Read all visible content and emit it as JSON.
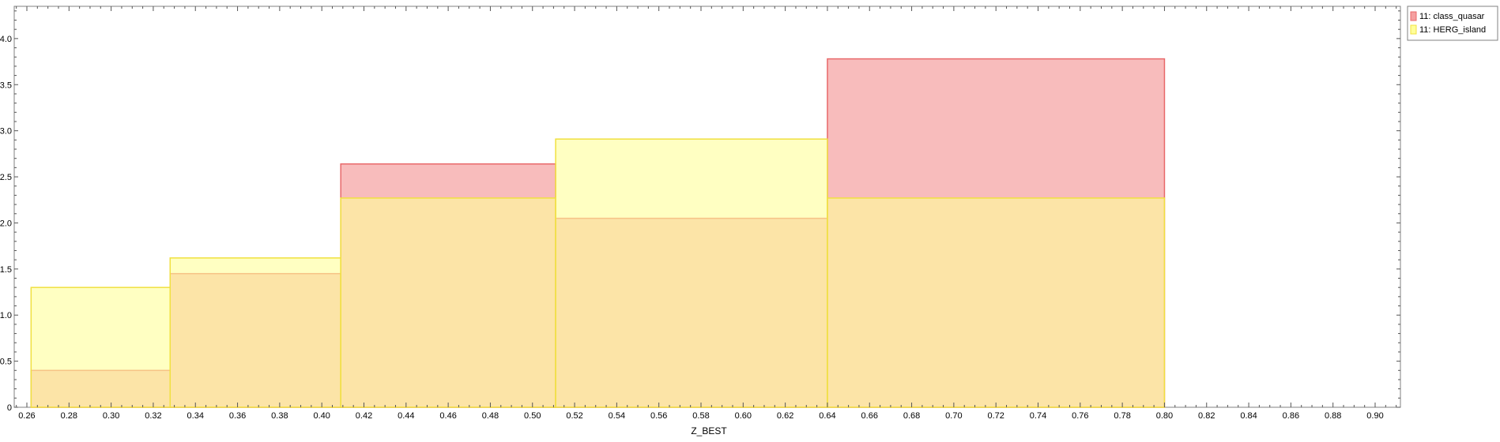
{
  "chart_data": {
    "type": "histogram",
    "xlabel": "Z_BEST",
    "ylabel": "",
    "xlim": [
      0.254,
      0.912
    ],
    "ylim": [
      0,
      4.35
    ],
    "x_ticks": [
      0.26,
      0.28,
      0.3,
      0.32,
      0.34,
      0.36,
      0.38,
      0.4,
      0.42,
      0.44,
      0.46,
      0.48,
      0.5,
      0.52,
      0.54,
      0.56,
      0.58,
      0.6,
      0.62,
      0.64,
      0.66,
      0.68,
      0.7,
      0.72,
      0.74,
      0.76,
      0.78,
      0.8,
      0.82,
      0.84,
      0.86,
      0.88,
      0.9
    ],
    "x_tick_labels": [
      "0.26",
      "0.28",
      "0.30",
      "0.32",
      "0.34",
      "0.36",
      "0.38",
      "0.40",
      "0.42",
      "0.44",
      "0.46",
      "0.48",
      "0.50",
      "0.52",
      "0.54",
      "0.56",
      "0.58",
      "0.60",
      "0.62",
      "0.64",
      "0.66",
      "0.68",
      "0.70",
      "0.72",
      "0.74",
      "0.76",
      "0.78",
      "0.80",
      "0.82",
      "0.84",
      "0.86",
      "0.88",
      "0.90"
    ],
    "y_ticks": [
      0,
      0.5,
      1.0,
      1.5,
      2.0,
      2.5,
      3.0,
      3.5,
      4.0
    ],
    "y_tick_labels": [
      "0",
      "0.5",
      "1.0",
      "1.5",
      "2.0",
      "2.5",
      "3.0",
      "3.5",
      "4.0"
    ],
    "bin_edges": [
      0.262,
      0.328,
      0.409,
      0.511,
      0.64,
      0.8
    ],
    "grid": false,
    "legend_position": "outside-top-right",
    "series": [
      {
        "name": "11: class_quasar",
        "values": [
          0.4,
          1.45,
          2.64,
          2.05,
          3.78
        ],
        "stroke": "#e8696a",
        "fill": "#f5a0a0",
        "fill_opacity": 0.7
      },
      {
        "name": "11: HERG_island",
        "values": [
          1.3,
          1.62,
          2.27,
          2.91,
          2.27
        ],
        "stroke": "#f0e040",
        "fill": "#ffff99",
        "fill_opacity": 0.6
      }
    ]
  }
}
